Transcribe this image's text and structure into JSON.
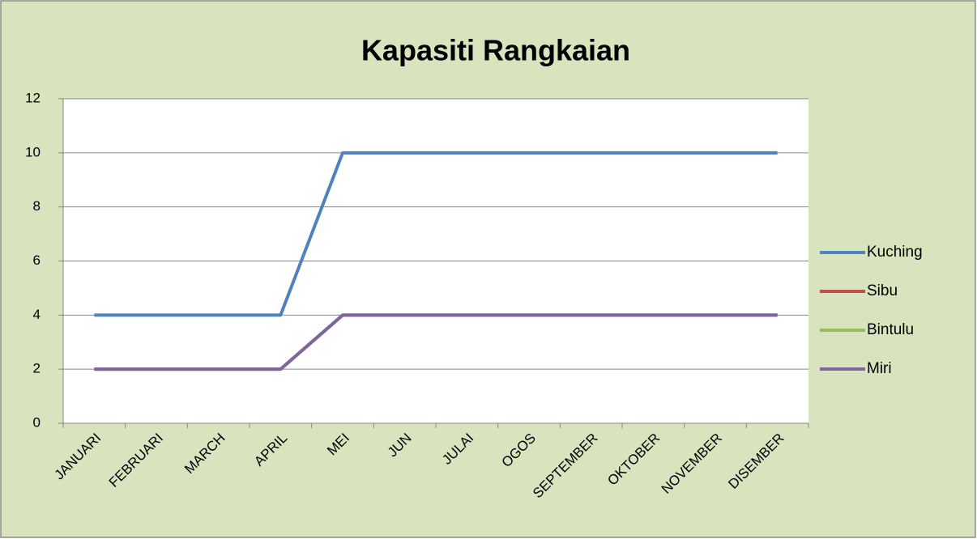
{
  "chart_data": {
    "type": "line",
    "title": "Kapasiti Rangkaian",
    "categories": [
      "JANUARI",
      "FEBRUARI",
      "MARCH",
      "APRIL",
      "MEI",
      "JUN",
      "JULAI",
      "OGOS",
      "SEPTEMBER",
      "OKTOBER",
      "NOVEMBER",
      "DISEMBER"
    ],
    "series": [
      {
        "name": "Kuching",
        "color": "#4f81bd",
        "values": [
          4,
          4,
          4,
          4,
          10,
          10,
          10,
          10,
          10,
          10,
          10,
          10
        ]
      },
      {
        "name": "Sibu",
        "color": "#c0504d",
        "values": [
          2,
          2,
          2,
          2,
          4,
          4,
          4,
          4,
          4,
          4,
          4,
          4
        ]
      },
      {
        "name": "Bintulu",
        "color": "#9bbb59",
        "values": [
          2,
          2,
          2,
          2,
          4,
          4,
          4,
          4,
          4,
          4,
          4,
          4
        ]
      },
      {
        "name": "Miri",
        "color": "#8064a2",
        "values": [
          2,
          2,
          2,
          2,
          4,
          4,
          4,
          4,
          4,
          4,
          4,
          4
        ]
      }
    ],
    "ylim": [
      0,
      12
    ],
    "yticks": [
      0,
      2,
      4,
      6,
      8,
      10,
      12
    ],
    "grid": true,
    "legend": "right"
  }
}
